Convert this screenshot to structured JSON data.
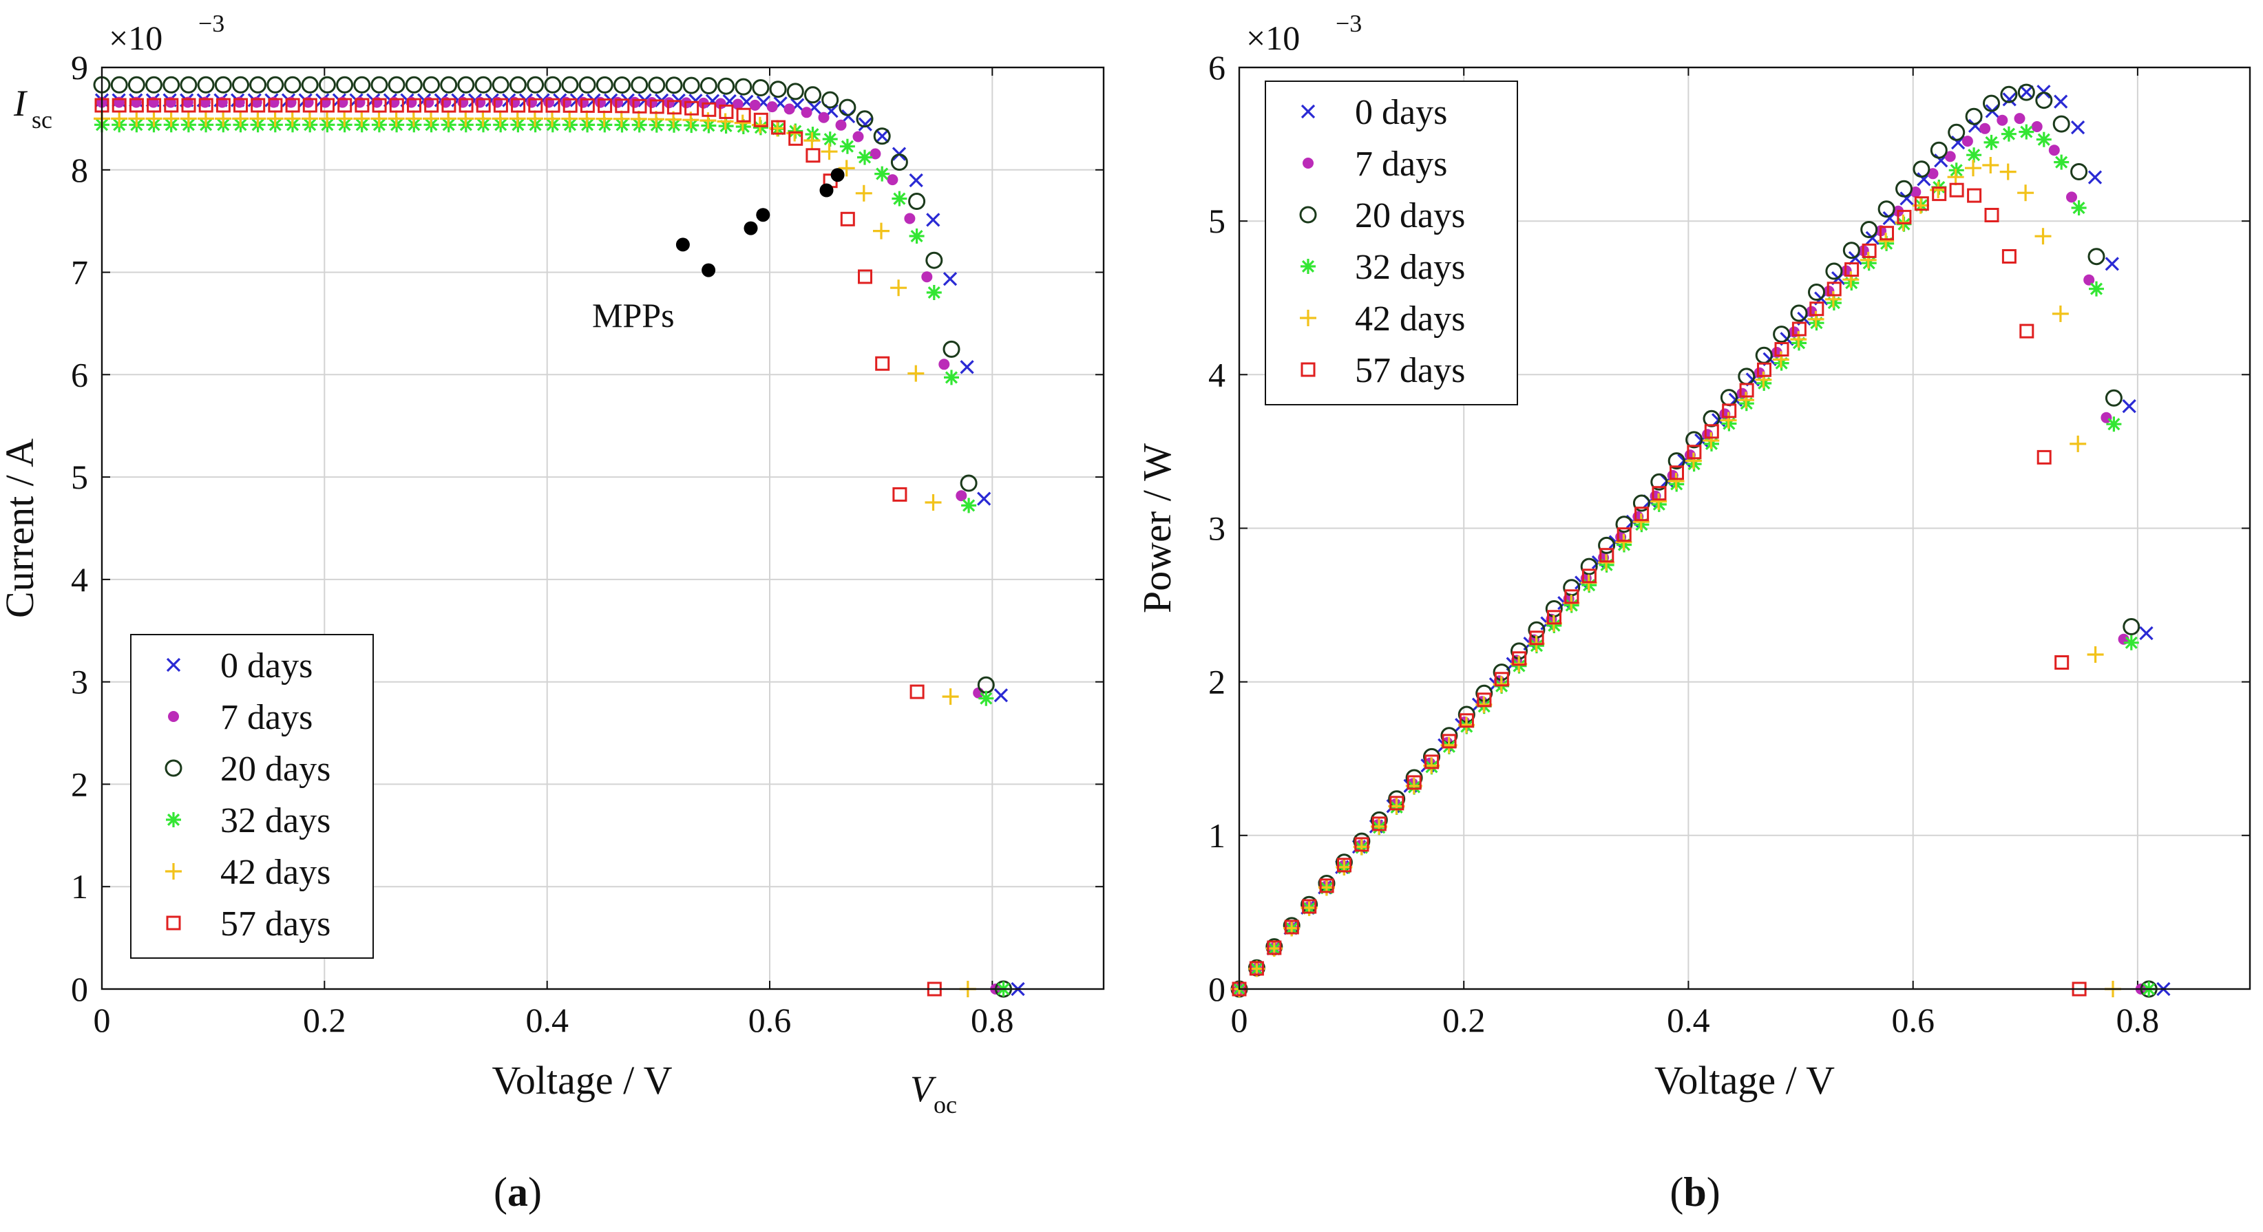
{
  "figure": {
    "caption_a": "a",
    "caption_b": "b",
    "paren_open": "(",
    "paren_close": ")"
  },
  "chart_data": [
    {
      "type": "scatter",
      "panel": "a",
      "xlabel": "Voltage / V",
      "ylabel": "Current / A",
      "exponent": "×10",
      "exponent_power": "−3",
      "xlim": [
        0,
        0.9
      ],
      "ylim": [
        0,
        9
      ],
      "xticks": [
        0,
        0.2,
        0.4,
        0.6,
        0.8
      ],
      "xtick_labels": [
        "0",
        "0.2",
        "0.4",
        "0.6",
        "0.8"
      ],
      "yticks": [
        0,
        1,
        2,
        3,
        4,
        5,
        6,
        7,
        8,
        9
      ],
      "ytick_labels": [
        "0",
        "1",
        "2",
        "3",
        "4",
        "5",
        "6",
        "7",
        "8",
        "9"
      ],
      "grid": true,
      "legend_position": "bottom-left",
      "annotations": {
        "isc_main": "I",
        "isc_sub": "sc",
        "voc_main": "V",
        "voc_sub": "oc",
        "mpps": "MPPs"
      },
      "mpp_points": [
        {
          "x": 0.661,
          "y": 7.95
        },
        {
          "x": 0.651,
          "y": 7.8
        },
        {
          "x": 0.594,
          "y": 7.56
        },
        {
          "x": 0.583,
          "y": 7.43
        },
        {
          "x": 0.522,
          "y": 7.27
        },
        {
          "x": 0.545,
          "y": 7.02
        }
      ],
      "series": [
        {
          "name": "0 days",
          "marker": "x",
          "color": "#2a2ad4",
          "isc": 8.68,
          "voc": 0.823,
          "m": 12,
          "npts": 54
        },
        {
          "name": "7 days",
          "marker": "dot",
          "color": "#bb2bb8",
          "isc": 8.66,
          "voc": 0.803,
          "m": 12,
          "npts": 52
        },
        {
          "name": "20 days",
          "marker": "circle",
          "color": "#1b3a1b",
          "isc": 8.83,
          "voc": 0.81,
          "m": 8,
          "npts": 52
        },
        {
          "name": "32 days",
          "marker": "star",
          "color": "#33e633",
          "isc": 8.44,
          "voc": 0.81,
          "m": 5.5,
          "npts": 52
        },
        {
          "name": "42 days",
          "marker": "plus",
          "color": "#f2c21a",
          "isc": 8.5,
          "voc": 0.778,
          "m": 6.5,
          "npts": 50
        },
        {
          "name": "57 days",
          "marker": "square",
          "color": "#e02020",
          "isc": 8.63,
          "voc": 0.748,
          "m": 6.5,
          "npts": 48
        }
      ]
    },
    {
      "type": "scatter",
      "panel": "b",
      "xlabel": "Voltage / V",
      "ylabel": "Power / W",
      "exponent": "×10",
      "exponent_power": "−3",
      "xlim": [
        0,
        0.9
      ],
      "ylim": [
        0,
        6
      ],
      "xticks": [
        0,
        0.2,
        0.4,
        0.6,
        0.8
      ],
      "xtick_labels": [
        "0",
        "0.2",
        "0.4",
        "0.6",
        "0.8"
      ],
      "yticks": [
        0,
        1,
        2,
        3,
        4,
        5,
        6
      ],
      "ytick_labels": [
        "0",
        "1",
        "2",
        "3",
        "4",
        "5",
        "6"
      ],
      "grid": true,
      "legend_position": "top-left",
      "series": [
        {
          "name": "0 days",
          "marker": "x",
          "color": "#2a2ad4"
        },
        {
          "name": "7 days",
          "marker": "dot",
          "color": "#bb2bb8"
        },
        {
          "name": "20 days",
          "marker": "circle",
          "color": "#1b3a1b"
        },
        {
          "name": "32 days",
          "marker": "star",
          "color": "#33e633"
        },
        {
          "name": "42 days",
          "marker": "plus",
          "color": "#f2c21a"
        },
        {
          "name": "57 days",
          "marker": "square",
          "color": "#e02020"
        }
      ]
    }
  ]
}
